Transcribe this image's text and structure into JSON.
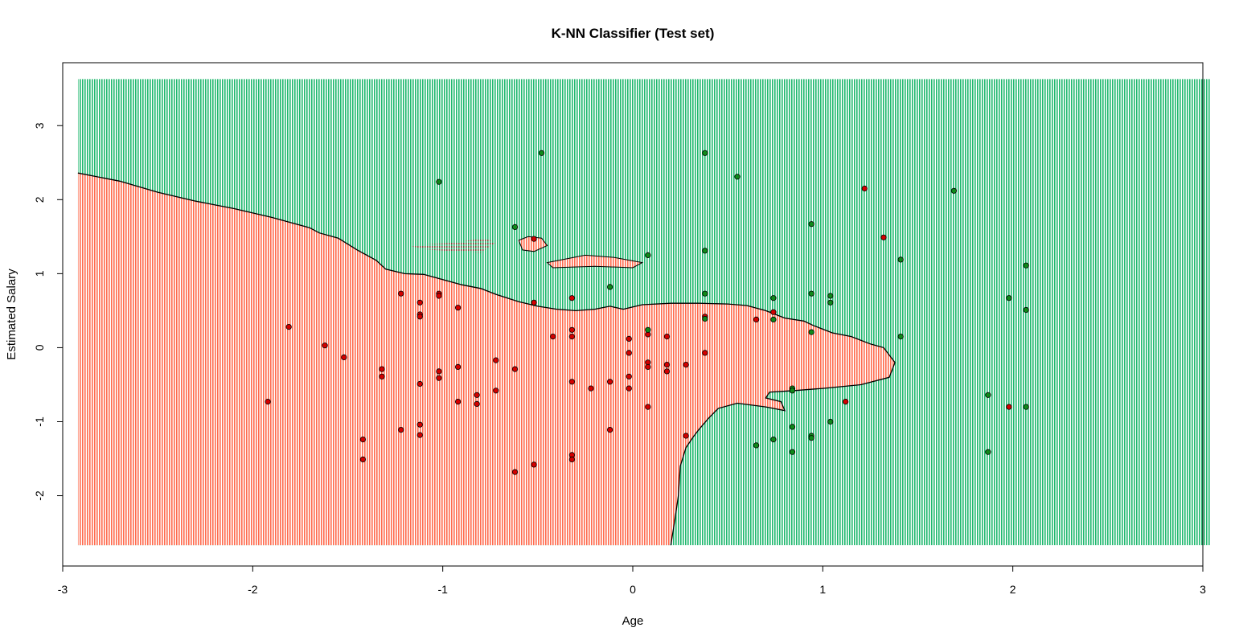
{
  "chart_data": {
    "type": "scatter",
    "title": "K-NN Classifier (Test set)",
    "xlabel": "Age",
    "ylabel": "Estimated Salary",
    "xlim": [
      -3.0,
      3.0
    ],
    "ylim": [
      -2.95,
      3.85
    ],
    "grid_region_x": [
      -2.92,
      3.04
    ],
    "grid_region_y": [
      -2.67,
      3.63
    ],
    "x_ticks": [
      -3,
      -2,
      -1,
      0,
      1,
      2,
      3
    ],
    "y_ticks": [
      -2,
      -1,
      0,
      1,
      2,
      3
    ],
    "x_tick_labels": [
      "-3",
      "-2",
      "-1",
      "0",
      "1",
      "2",
      "3"
    ],
    "y_tick_labels": [
      "-2",
      "-1",
      "0",
      "1",
      "2",
      "3"
    ],
    "grid": false,
    "legend": "none",
    "colors": {
      "region_class_0": "#ff6a4d",
      "region_class_1": "#1fb86e",
      "point_class_0": "#d40000",
      "point_class_1": "#0f8a1a",
      "point_outline": "#000000",
      "boundary": "#000000"
    },
    "decision_boundary": [
      [
        -2.92,
        2.36
      ],
      [
        -2.7,
        2.25
      ],
      [
        -2.5,
        2.1
      ],
      [
        -2.3,
        1.98
      ],
      [
        -2.1,
        1.88
      ],
      [
        -1.9,
        1.76
      ],
      [
        -1.7,
        1.62
      ],
      [
        -1.65,
        1.55
      ],
      [
        -1.55,
        1.48
      ],
      [
        -1.45,
        1.32
      ],
      [
        -1.35,
        1.18
      ],
      [
        -1.3,
        1.06
      ],
      [
        -1.2,
        1.0
      ],
      [
        -1.1,
        0.99
      ],
      [
        -1.0,
        0.92
      ],
      [
        -0.9,
        0.85
      ],
      [
        -0.8,
        0.8
      ],
      [
        -0.72,
        0.72
      ],
      [
        -0.6,
        0.62
      ],
      [
        -0.5,
        0.56
      ],
      [
        -0.4,
        0.52
      ],
      [
        -0.3,
        0.5
      ],
      [
        -0.2,
        0.52
      ],
      [
        -0.12,
        0.56
      ],
      [
        -0.05,
        0.52
      ],
      [
        0.05,
        0.58
      ],
      [
        0.2,
        0.6
      ],
      [
        0.35,
        0.6
      ],
      [
        0.5,
        0.59
      ],
      [
        0.6,
        0.57
      ],
      [
        0.7,
        0.5
      ],
      [
        0.8,
        0.4
      ],
      [
        0.9,
        0.36
      ],
      [
        0.95,
        0.3
      ],
      [
        1.05,
        0.2
      ],
      [
        1.15,
        0.15
      ],
      [
        1.25,
        0.05
      ],
      [
        1.32,
        0.0
      ],
      [
        1.35,
        -0.1
      ],
      [
        1.38,
        -0.2
      ],
      [
        1.35,
        -0.4
      ],
      [
        1.2,
        -0.5
      ],
      [
        1.0,
        -0.55
      ],
      [
        0.85,
        -0.58
      ],
      [
        0.72,
        -0.6
      ],
      [
        0.7,
        -0.68
      ],
      [
        0.78,
        -0.73
      ],
      [
        0.8,
        -0.85
      ],
      [
        0.7,
        -0.8
      ],
      [
        0.55,
        -0.75
      ],
      [
        0.45,
        -0.82
      ],
      [
        0.4,
        -0.95
      ],
      [
        0.35,
        -1.1
      ],
      [
        0.32,
        -1.2
      ],
      [
        0.28,
        -1.35
      ],
      [
        0.25,
        -1.6
      ],
      [
        0.24,
        -2.0
      ],
      [
        0.22,
        -2.35
      ],
      [
        0.2,
        -2.67
      ]
    ],
    "island_region_class_0": [
      [
        -0.6,
        1.45
      ],
      [
        -0.55,
        1.5
      ],
      [
        -0.48,
        1.48
      ],
      [
        -0.45,
        1.38
      ],
      [
        -0.52,
        1.3
      ],
      [
        -0.58,
        1.32
      ]
    ],
    "island_region_class_0_b": [
      [
        -0.45,
        1.15
      ],
      [
        -0.35,
        1.2
      ],
      [
        -0.25,
        1.25
      ],
      [
        -0.1,
        1.22
      ],
      [
        0.05,
        1.15
      ],
      [
        0.0,
        1.08
      ],
      [
        -0.2,
        1.1
      ],
      [
        -0.42,
        1.08
      ]
    ],
    "island_mixed": [
      [
        -1.18,
        1.38
      ],
      [
        -0.95,
        1.42
      ],
      [
        -0.78,
        1.48
      ],
      [
        -0.72,
        1.42
      ],
      [
        -0.8,
        1.28
      ],
      [
        -0.95,
        1.3
      ],
      [
        -1.1,
        1.33
      ]
    ],
    "points_class_0": [
      [
        -1.92,
        -0.73
      ],
      [
        -1.81,
        0.28
      ],
      [
        -1.62,
        0.03
      ],
      [
        -1.52,
        -0.13
      ],
      [
        -1.42,
        -1.24
      ],
      [
        -1.42,
        -1.51
      ],
      [
        -1.32,
        -0.29
      ],
      [
        -1.32,
        -0.39
      ],
      [
        -1.22,
        0.73
      ],
      [
        -1.22,
        -1.11
      ],
      [
        -1.12,
        0.61
      ],
      [
        -1.12,
        0.45
      ],
      [
        -1.12,
        0.42
      ],
      [
        -1.12,
        -0.49
      ],
      [
        -1.12,
        -1.04
      ],
      [
        -1.12,
        -1.18
      ],
      [
        -1.02,
        0.73
      ],
      [
        -1.02,
        0.7
      ],
      [
        -1.02,
        -0.32
      ],
      [
        -1.02,
        -0.41
      ],
      [
        -0.92,
        0.54
      ],
      [
        -0.92,
        -0.26
      ],
      [
        -0.92,
        -0.73
      ],
      [
        -0.82,
        -0.64
      ],
      [
        -0.82,
        -0.76
      ],
      [
        -0.72,
        -0.17
      ],
      [
        -0.72,
        -0.58
      ],
      [
        -0.62,
        -0.29
      ],
      [
        -0.62,
        -1.68
      ],
      [
        -0.52,
        1.47
      ],
      [
        -0.52,
        0.61
      ],
      [
        -0.52,
        -1.58
      ],
      [
        -0.42,
        0.15
      ],
      [
        -0.32,
        0.67
      ],
      [
        -0.32,
        0.24
      ],
      [
        -0.32,
        0.15
      ],
      [
        -0.32,
        -0.46
      ],
      [
        -0.32,
        -1.45
      ],
      [
        -0.32,
        -1.51
      ],
      [
        -0.22,
        -0.55
      ],
      [
        -0.12,
        -0.46
      ],
      [
        -0.12,
        -1.11
      ],
      [
        -0.02,
        0.12
      ],
      [
        -0.02,
        -0.07
      ],
      [
        -0.02,
        -0.39
      ],
      [
        -0.02,
        -0.55
      ],
      [
        0.08,
        0.18
      ],
      [
        0.08,
        -0.2
      ],
      [
        0.08,
        -0.26
      ],
      [
        0.08,
        -0.8
      ],
      [
        0.18,
        0.15
      ],
      [
        0.18,
        -0.23
      ],
      [
        0.18,
        -0.32
      ],
      [
        0.28,
        -0.23
      ],
      [
        0.28,
        -1.19
      ],
      [
        0.38,
        0.42
      ],
      [
        0.38,
        -0.07
      ],
      [
        0.65,
        0.38
      ],
      [
        0.74,
        0.48
      ],
      [
        1.12,
        -0.73
      ],
      [
        1.22,
        2.15
      ],
      [
        1.32,
        1.49
      ],
      [
        1.98,
        -0.8
      ]
    ],
    "points_class_1": [
      [
        -1.02,
        2.24
      ],
      [
        -0.62,
        1.63
      ],
      [
        -0.48,
        2.63
      ],
      [
        -0.12,
        0.82
      ],
      [
        0.08,
        1.25
      ],
      [
        0.08,
        0.24
      ],
      [
        0.38,
        2.63
      ],
      [
        0.38,
        1.31
      ],
      [
        0.38,
        0.73
      ],
      [
        0.38,
        0.39
      ],
      [
        0.55,
        2.31
      ],
      [
        0.65,
        -1.32
      ],
      [
        0.74,
        0.67
      ],
      [
        0.74,
        0.38
      ],
      [
        0.74,
        -1.24
      ],
      [
        0.84,
        -0.55
      ],
      [
        0.84,
        -0.58
      ],
      [
        0.84,
        -1.07
      ],
      [
        0.84,
        -1.41
      ],
      [
        0.94,
        1.67
      ],
      [
        0.94,
        0.73
      ],
      [
        0.94,
        0.21
      ],
      [
        0.94,
        -1.19
      ],
      [
        0.94,
        -1.22
      ],
      [
        1.04,
        0.7
      ],
      [
        1.04,
        0.61
      ],
      [
        1.04,
        -1.0
      ],
      [
        1.41,
        1.19
      ],
      [
        1.41,
        0.15
      ],
      [
        1.69,
        2.12
      ],
      [
        1.87,
        -0.64
      ],
      [
        1.87,
        -1.41
      ],
      [
        1.98,
        0.67
      ],
      [
        2.07,
        1.11
      ],
      [
        2.07,
        0.51
      ],
      [
        2.07,
        -0.8
      ]
    ]
  }
}
